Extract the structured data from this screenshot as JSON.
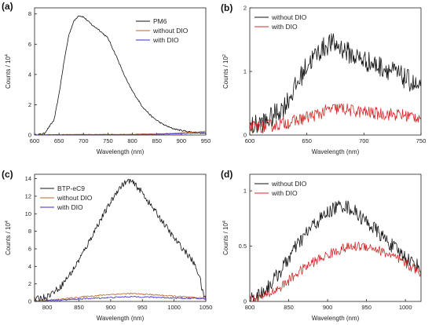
{
  "chart_data": [
    {
      "panel_label": "(a)",
      "type": "line",
      "xlabel": "Wavelength (nm)",
      "ylabel_prefix": "Counts / 10",
      "ylabel_exp": "4",
      "xlim": [
        600,
        950
      ],
      "ylim": [
        0,
        8.4
      ],
      "xticks": [
        600,
        650,
        700,
        750,
        800,
        850,
        900,
        950
      ],
      "yticks": [
        0,
        2,
        4,
        6,
        8
      ],
      "legend_position": "top-right",
      "series": [
        {
          "name": "PM6",
          "color": "#111111",
          "noise": 0.05,
          "x": [
            600,
            620,
            640,
            650,
            660,
            670,
            680,
            690,
            700,
            710,
            720,
            730,
            740,
            750,
            760,
            770,
            780,
            790,
            800,
            820,
            840,
            860,
            880,
            900,
            920,
            950
          ],
          "y": [
            0,
            0.1,
            1.0,
            2.7,
            4.8,
            6.6,
            7.5,
            7.9,
            7.8,
            7.5,
            7.2,
            7.0,
            6.7,
            6.4,
            5.7,
            5.0,
            4.2,
            3.5,
            2.9,
            1.9,
            1.2,
            0.75,
            0.45,
            0.3,
            0.2,
            0.1
          ]
        },
        {
          "name": "without DIO",
          "color": "#c0632a",
          "noise": 0.02,
          "x": [
            600,
            700,
            800,
            850,
            900,
            930,
            950
          ],
          "y": [
            0.02,
            0.04,
            0.05,
            0.08,
            0.14,
            0.2,
            0.24
          ]
        },
        {
          "name": "with DIO",
          "color": "#3b2ccf",
          "noise": 0.02,
          "x": [
            600,
            700,
            800,
            850,
            900,
            930,
            950
          ],
          "y": [
            0.01,
            0.02,
            0.03,
            0.05,
            0.09,
            0.13,
            0.16
          ]
        }
      ]
    },
    {
      "panel_label": "(b)",
      "type": "line",
      "xlabel": "Wavelength (nm)",
      "ylabel_prefix": "Counts / 10",
      "ylabel_exp": "2",
      "xlim": [
        600,
        750
      ],
      "ylim": [
        0,
        2
      ],
      "xticks": [
        600,
        650,
        700,
        750
      ],
      "yticks": [
        0,
        1,
        2
      ],
      "legend_position": "top-left",
      "series": [
        {
          "name": "without DIO",
          "color": "#111111",
          "noise": 0.17,
          "x": [
            600,
            615,
            630,
            640,
            650,
            660,
            670,
            680,
            690,
            700,
            710,
            720,
            730,
            740,
            750
          ],
          "y": [
            0.12,
            0.22,
            0.45,
            0.75,
            1.1,
            1.3,
            1.45,
            1.38,
            1.25,
            1.18,
            1.1,
            1.05,
            0.95,
            0.85,
            0.7
          ]
        },
        {
          "name": "with DIO",
          "color": "#d62a2a",
          "noise": 0.1,
          "x": [
            600,
            620,
            640,
            650,
            660,
            670,
            680,
            690,
            700,
            710,
            720,
            730,
            740,
            750
          ],
          "y": [
            0.12,
            0.15,
            0.22,
            0.28,
            0.33,
            0.4,
            0.42,
            0.38,
            0.36,
            0.34,
            0.33,
            0.32,
            0.3,
            0.28
          ]
        }
      ]
    },
    {
      "panel_label": "(c)",
      "type": "line",
      "xlabel": "Wavelength (nm)",
      "ylabel_prefix": "Counts / 10",
      "ylabel_exp": "4",
      "xlim": [
        780,
        1050
      ],
      "ylim": [
        0,
        14.5
      ],
      "xticks": [
        800,
        850,
        900,
        950,
        1000,
        1050
      ],
      "yticks": [
        0,
        2,
        4,
        6,
        8,
        10,
        12,
        14
      ],
      "legend_position": "top-left",
      "series": [
        {
          "name": "BTP-eC9",
          "color": "#111111",
          "noise": 0.35,
          "x": [
            780,
            800,
            820,
            840,
            860,
            880,
            900,
            910,
            920,
            930,
            940,
            950,
            960,
            980,
            1000,
            1020,
            1030,
            1040,
            1045,
            1050
          ],
          "y": [
            0.2,
            0.6,
            1.6,
            3.5,
            6.0,
            8.8,
            11.3,
            12.6,
            13.4,
            13.8,
            13.2,
            12.4,
            11.3,
            9.3,
            7.2,
            5.5,
            4.5,
            3.0,
            1.0,
            0.3
          ]
        },
        {
          "name": "without DIO",
          "color": "#c0632a",
          "noise": 0.08,
          "x": [
            780,
            820,
            860,
            900,
            930,
            960,
            1000,
            1030,
            1050
          ],
          "y": [
            0.05,
            0.25,
            0.55,
            0.8,
            0.9,
            0.8,
            0.6,
            0.45,
            0.4
          ]
        },
        {
          "name": "with DIO",
          "color": "#3b2ccf",
          "noise": 0.08,
          "x": [
            780,
            820,
            860,
            900,
            930,
            960,
            1000,
            1030,
            1050
          ],
          "y": [
            0.03,
            0.15,
            0.32,
            0.45,
            0.55,
            0.5,
            0.4,
            0.35,
            0.3
          ]
        }
      ]
    },
    {
      "panel_label": "(d)",
      "type": "line",
      "xlabel": "Wavelength (nm)",
      "ylabel_prefix": "Counts / 10",
      "ylabel_exp": "4",
      "xlim": [
        800,
        1020
      ],
      "ylim": [
        0,
        1.15
      ],
      "xticks": [
        800,
        850,
        900,
        950,
        1000
      ],
      "yticks": [
        0.0,
        0.5,
        1.0
      ],
      "legend_position": "top-left",
      "series": [
        {
          "name": "without DIO",
          "color": "#111111",
          "noise": 0.065,
          "x": [
            800,
            820,
            840,
            860,
            880,
            900,
            910,
            920,
            930,
            940,
            960,
            980,
            1000,
            1020
          ],
          "y": [
            0.02,
            0.1,
            0.28,
            0.5,
            0.68,
            0.8,
            0.85,
            0.87,
            0.84,
            0.78,
            0.66,
            0.52,
            0.4,
            0.3
          ]
        },
        {
          "name": "with DIO",
          "color": "#d62a2a",
          "noise": 0.045,
          "x": [
            800,
            820,
            840,
            860,
            880,
            900,
            920,
            940,
            950,
            960,
            980,
            1000,
            1020
          ],
          "y": [
            0.01,
            0.05,
            0.13,
            0.25,
            0.35,
            0.42,
            0.48,
            0.5,
            0.5,
            0.48,
            0.42,
            0.34,
            0.26
          ]
        }
      ]
    }
  ]
}
